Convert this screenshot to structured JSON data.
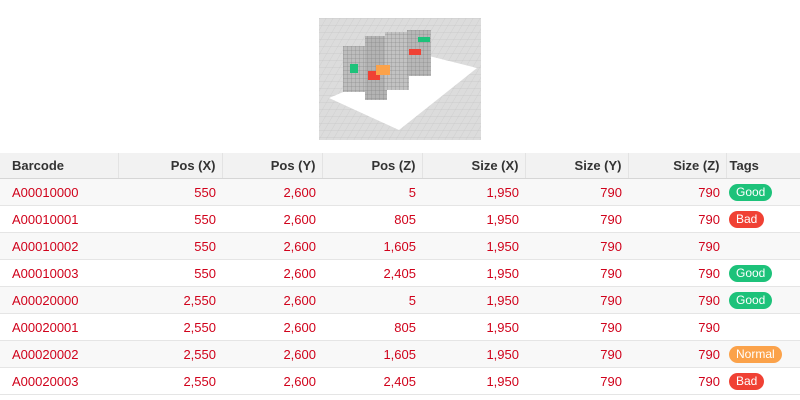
{
  "columns": {
    "barcode": "Barcode",
    "pos_x": "Pos (X)",
    "pos_y": "Pos (Y)",
    "pos_z": "Pos (Z)",
    "size_x": "Size (X)",
    "size_y": "Size (Y)",
    "size_z": "Size (Z)",
    "tags": "Tags"
  },
  "rows": [
    {
      "barcode": "A00010000",
      "pos_x": "550",
      "pos_y": "2,600",
      "pos_z": "5",
      "size_x": "1,950",
      "size_y": "790",
      "size_z": "790",
      "tag": "Good"
    },
    {
      "barcode": "A00010001",
      "pos_x": "550",
      "pos_y": "2,600",
      "pos_z": "805",
      "size_x": "1,950",
      "size_y": "790",
      "size_z": "790",
      "tag": "Bad"
    },
    {
      "barcode": "A00010002",
      "pos_x": "550",
      "pos_y": "2,600",
      "pos_z": "1,605",
      "size_x": "1,950",
      "size_y": "790",
      "size_z": "790",
      "tag": ""
    },
    {
      "barcode": "A00010003",
      "pos_x": "550",
      "pos_y": "2,600",
      "pos_z": "2,405",
      "size_x": "1,950",
      "size_y": "790",
      "size_z": "790",
      "tag": "Good"
    },
    {
      "barcode": "A00020000",
      "pos_x": "2,550",
      "pos_y": "2,600",
      "pos_z": "5",
      "size_x": "1,950",
      "size_y": "790",
      "size_z": "790",
      "tag": "Good"
    },
    {
      "barcode": "A00020001",
      "pos_x": "2,550",
      "pos_y": "2,600",
      "pos_z": "805",
      "size_x": "1,950",
      "size_y": "790",
      "size_z": "790",
      "tag": ""
    },
    {
      "barcode": "A00020002",
      "pos_x": "2,550",
      "pos_y": "2,600",
      "pos_z": "1,605",
      "size_x": "1,950",
      "size_y": "790",
      "size_z": "790",
      "tag": "Normal"
    },
    {
      "barcode": "A00020003",
      "pos_x": "2,550",
      "pos_y": "2,600",
      "pos_z": "2,405",
      "size_x": "1,950",
      "size_y": "790",
      "size_z": "790",
      "tag": "Bad"
    }
  ],
  "tag_colors": {
    "Good": "#1dc27a",
    "Bad": "#f04134",
    "Normal": "#fba24a"
  },
  "colors": {
    "value_text": "#d0021b",
    "header_bg": "#f2f2f2"
  }
}
